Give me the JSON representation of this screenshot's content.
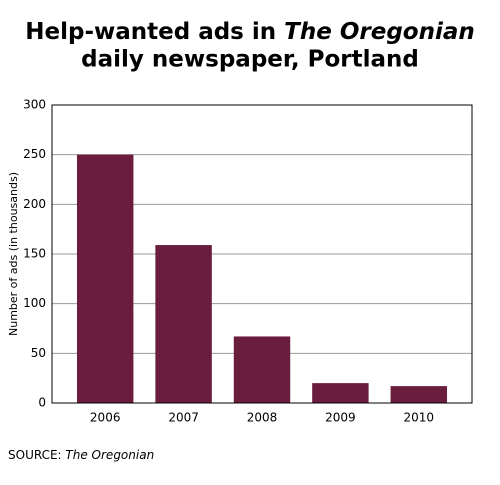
{
  "chart_data": {
    "type": "bar",
    "title": [
      "Help-wanted ads in",
      "The Oregonian",
      "daily newspaper, Portland"
    ],
    "y_label": "Number of ads (in thousands)",
    "categories": [
      "2006",
      "2007",
      "2008",
      "2009",
      "2010"
    ],
    "values": [
      250,
      159,
      67,
      20,
      17
    ],
    "color": "#6b1d3e",
    "ylim": [
      0,
      300
    ],
    "yticks": [
      0,
      50,
      100,
      150,
      200,
      250,
      300
    ],
    "grid": true,
    "source": [
      "SOURCE:",
      "The Oregonian"
    ]
  }
}
